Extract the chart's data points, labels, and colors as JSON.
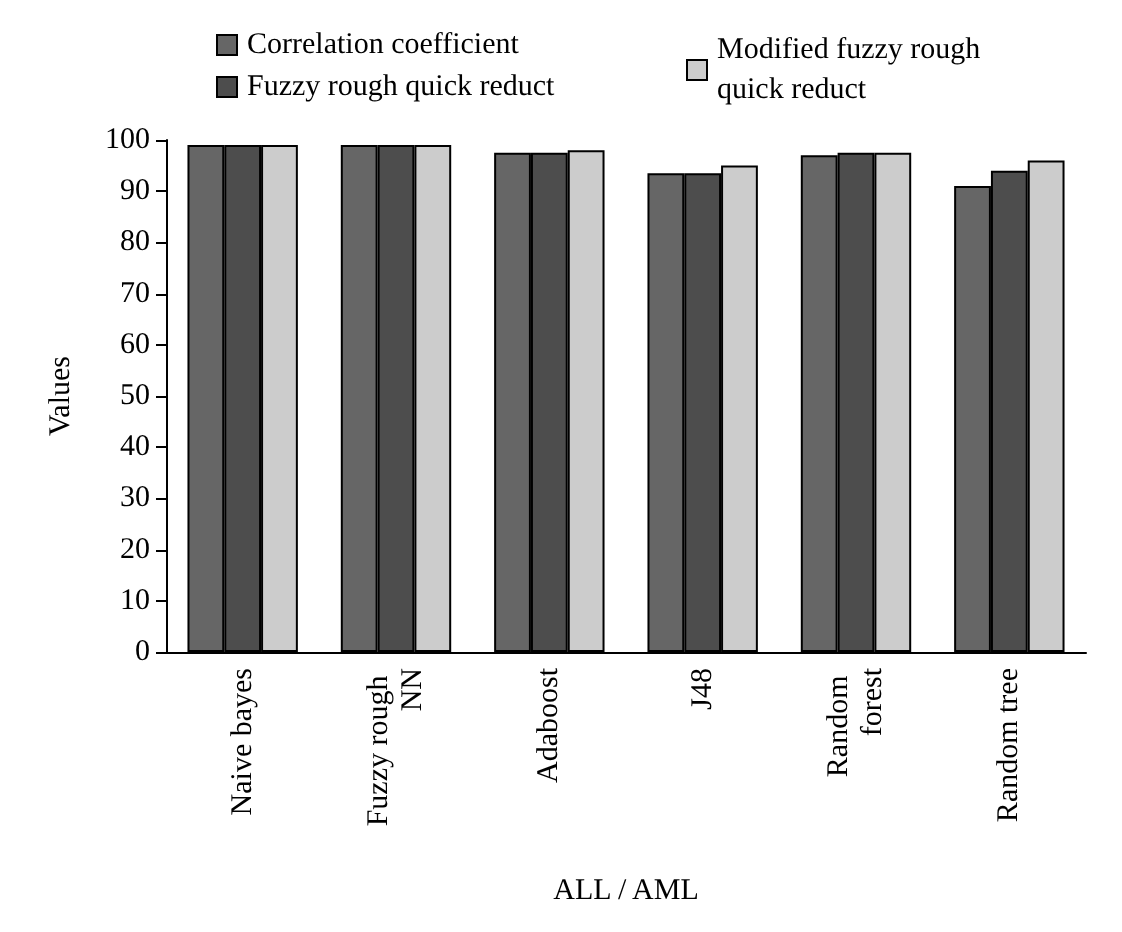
{
  "chart_data": {
    "type": "bar",
    "xlabel": "ALL / AML",
    "ylabel": "Values",
    "categories": [
      "Naive bayes",
      "Fuzzy rough NN",
      "Adaboost",
      "J48",
      "Random forest",
      "Random tree"
    ],
    "series": [
      {
        "name": "Correlation coefficient",
        "color": "#666666",
        "values": [
          99,
          99,
          97.5,
          93.5,
          97,
          91
        ]
      },
      {
        "name": "Fuzzy rough quick reduct",
        "color": "#4d4d4d",
        "values": [
          99,
          99,
          97.5,
          93.5,
          97.5,
          94
        ]
      },
      {
        "name": "Modified fuzzy rough quick reduct",
        "color": "#cccccc",
        "values": [
          99,
          99,
          98,
          95,
          97.5,
          96
        ]
      }
    ],
    "ylim": [
      0,
      100
    ],
    "yticks": [
      0,
      10,
      20,
      30,
      40,
      50,
      60,
      70,
      80,
      90,
      100
    ],
    "grid": false,
    "legend": "top"
  }
}
